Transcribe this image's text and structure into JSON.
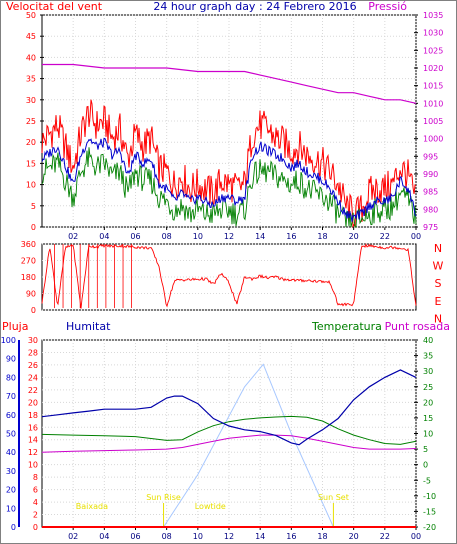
{
  "colors": {
    "wind": "#ff0000",
    "wind_avg": "#0000cc",
    "wind_min": "#008000",
    "pressure": "#cc00cc",
    "direction": "#ff0000",
    "humidity": "#0000aa",
    "temperature": "#008000",
    "dewpoint": "#cc00cc",
    "rain": "#ff0000",
    "sun": "#a8c8ff",
    "marker": "#e8e000",
    "left_axis": "#ff0000",
    "right_axis": "#cc00cc",
    "humidity_axis": "#0000cc",
    "temp_axis": "#008000"
  },
  "chart_data": [
    {
      "type": "line",
      "title": "24 hour graph day : 24 Febrero 2016",
      "left_label": "Velocitat del vent",
      "right_label": "Pressió",
      "x_ticks": [
        "02",
        "04",
        "06",
        "08",
        "10",
        "12",
        "14",
        "16",
        "18",
        "20",
        "22",
        "00"
      ],
      "y_left": {
        "min": 0,
        "max": 50,
        "ticks": [
          0,
          5,
          10,
          15,
          20,
          25,
          30,
          35,
          40,
          45,
          50
        ]
      },
      "y_right": {
        "min": 975,
        "max": 1035,
        "ticks": [
          975,
          980,
          985,
          990,
          995,
          1000,
          1005,
          1010,
          1015,
          1020,
          1025,
          1030,
          1035
        ]
      },
      "series": [
        {
          "key": "gust",
          "hours": [
            0,
            1,
            2,
            2.5,
            3,
            3.5,
            4,
            4.5,
            5,
            5.5,
            6,
            6.5,
            7,
            7.5,
            8,
            8.5,
            9,
            9.5,
            10,
            10.5,
            11,
            11.5,
            12,
            12.5,
            13,
            13.5,
            14,
            14.5,
            15,
            15.5,
            16,
            16.5,
            17,
            17.5,
            18,
            18.5,
            19,
            19.5,
            20,
            20.5,
            21,
            21.5,
            22,
            22.5,
            23,
            23.5,
            24
          ],
          "values": [
            20,
            24,
            14,
            22,
            27,
            24,
            25,
            21,
            23,
            16,
            22,
            19,
            21,
            14,
            13,
            10,
            12,
            9,
            10,
            9,
            8,
            11,
            10,
            9,
            10,
            22,
            24,
            23,
            21,
            20,
            18,
            19,
            17,
            16,
            15,
            13,
            10,
            5,
            3,
            4,
            8,
            9,
            9,
            10,
            14,
            12,
            6
          ]
        },
        {
          "key": "wind_avg",
          "hours": [
            0,
            1,
            2,
            2.5,
            3,
            3.5,
            4,
            4.5,
            5,
            5.5,
            6,
            6.5,
            7,
            7.5,
            8,
            8.5,
            9,
            9.5,
            10,
            10.5,
            11,
            11.5,
            12,
            12.5,
            13,
            13.5,
            14,
            14.5,
            15,
            15.5,
            16,
            16.5,
            17,
            17.5,
            18,
            18.5,
            19,
            19.5,
            20,
            20.5,
            21,
            21.5,
            22,
            22.5,
            23,
            23.5,
            24
          ],
          "values": [
            16,
            19,
            10,
            17,
            21,
            19,
            20,
            17,
            18,
            12,
            17,
            15,
            16,
            10,
            9,
            6,
            8,
            6,
            7,
            6,
            5,
            7,
            7,
            6,
            7,
            17,
            19,
            18,
            17,
            16,
            14,
            15,
            13,
            12,
            11,
            9,
            6,
            3,
            2,
            3,
            5,
            6,
            6,
            7,
            11,
            9,
            3
          ]
        },
        {
          "key": "wind_min",
          "hours": [
            0,
            1,
            2,
            2.5,
            3,
            3.5,
            4,
            4.5,
            5,
            5.5,
            6,
            6.5,
            7,
            7.5,
            8,
            8.5,
            9,
            9.5,
            10,
            10.5,
            11,
            11.5,
            12,
            12.5,
            13,
            13.5,
            14,
            14.5,
            15,
            15.5,
            16,
            16.5,
            17,
            17.5,
            18,
            18.5,
            19,
            19.5,
            20,
            20.5,
            21,
            21.5,
            22,
            22.5,
            23,
            23.5,
            24
          ],
          "values": [
            13,
            15,
            7,
            13,
            16,
            14,
            15,
            12,
            13,
            8,
            13,
            11,
            11,
            7,
            6,
            4,
            5,
            3,
            4,
            3,
            3,
            4,
            4,
            3,
            4,
            12,
            13,
            13,
            12,
            11,
            10,
            11,
            9,
            8,
            7,
            6,
            3,
            1,
            1,
            2,
            3,
            4,
            4,
            5,
            8,
            6,
            2
          ]
        },
        {
          "key": "pressure",
          "axis": "right",
          "hours": [
            0,
            2,
            4,
            6,
            8,
            10,
            12,
            13,
            14,
            16,
            17,
            18,
            19,
            20,
            21,
            22,
            23,
            24
          ],
          "values": [
            1021,
            1021,
            1020,
            1020,
            1020,
            1019,
            1019,
            1019,
            1018,
            1016,
            1015,
            1014,
            1013,
            1013,
            1012,
            1011,
            1011,
            1010
          ]
        }
      ]
    },
    {
      "type": "line",
      "ylabels": [
        "N",
        "W",
        "S",
        "E",
        "N"
      ],
      "y": {
        "min": 0,
        "max": 360,
        "ticks": [
          0,
          90,
          180,
          270,
          360
        ]
      },
      "series": [
        {
          "key": "direction",
          "hours": [
            0,
            0.5,
            1,
            1.5,
            2,
            2.5,
            3,
            3.5,
            4,
            4.5,
            5,
            5.5,
            6,
            6.5,
            7,
            7.5,
            8,
            8.5,
            9,
            9.5,
            10,
            10.5,
            11,
            11.5,
            12,
            12.5,
            13,
            13.5,
            14,
            14.5,
            15,
            15.5,
            16,
            16.5,
            17,
            17.5,
            18,
            18.5,
            19,
            19.5,
            20,
            20.5,
            21,
            21.5,
            22,
            22.5,
            23,
            23.5,
            24
          ],
          "values": [
            40,
            350,
            20,
            340,
            355,
            10,
            350,
            345,
            352,
            348,
            350,
            346,
            344,
            340,
            338,
            240,
            20,
            160,
            165,
            165,
            168,
            170,
            140,
            200,
            150,
            30,
            180,
            170,
            185,
            175,
            180,
            168,
            165,
            160,
            162,
            158,
            155,
            150,
            30,
            30,
            30,
            350,
            350,
            345,
            340,
            342,
            338,
            330,
            20
          ]
        }
      ]
    },
    {
      "type": "line",
      "labels": {
        "rain": "Pluja",
        "humidity": "Humitat",
        "temperature": "Temperatura",
        "dewpoint": "Punt rosada"
      },
      "x_ticks": [
        "02",
        "04",
        "06",
        "08",
        "10",
        "12",
        "14",
        "16",
        "18",
        "20",
        "22",
        "00"
      ],
      "y_humidity": {
        "min": 0,
        "max": 100,
        "ticks": [
          0,
          10,
          20,
          30,
          40,
          50,
          60,
          70,
          80,
          90,
          100
        ]
      },
      "y_rain": {
        "min": 0,
        "max": 30,
        "ticks": [
          0,
          2,
          4,
          6,
          8,
          10,
          12,
          14,
          16,
          18,
          20,
          22,
          24,
          26,
          28,
          30
        ]
      },
      "y_temp": {
        "min": -20,
        "max": 40,
        "ticks": [
          -20,
          -15,
          -10,
          -5,
          0,
          5,
          10,
          15,
          20,
          25,
          30,
          35,
          40
        ]
      },
      "events": [
        {
          "label": "Sun Rise",
          "hour": 7.8
        },
        {
          "label": "Sun Set",
          "hour": 18.7
        },
        {
          "label": "Baixada",
          "hour": 3.2
        },
        {
          "label": "Lowtide",
          "hour": 10.8
        }
      ],
      "series": [
        {
          "key": "humidity",
          "axis": "humidity",
          "hours": [
            0,
            1,
            2,
            3,
            4,
            5,
            6,
            7,
            8,
            8.5,
            9,
            10,
            11,
            12,
            13,
            14,
            15,
            16,
            16.5,
            17,
            18,
            19,
            20,
            21,
            22,
            23,
            23.5,
            24
          ],
          "values": [
            59,
            60,
            61,
            62,
            63,
            63,
            63,
            64,
            69,
            70,
            70,
            66,
            58,
            54,
            52,
            51,
            49,
            45,
            44,
            47,
            52,
            58,
            68,
            75,
            80,
            84,
            82,
            80
          ]
        },
        {
          "key": "temperature",
          "axis": "temp",
          "hours": [
            0,
            2,
            4,
            6,
            8,
            9,
            10,
            11,
            12,
            13,
            14,
            15,
            16,
            17,
            18,
            19,
            20,
            21,
            22,
            23,
            24
          ],
          "values": [
            9.7,
            9.5,
            9.3,
            9,
            7.8,
            8,
            10.5,
            12.5,
            13.8,
            14.6,
            15,
            15.3,
            15.5,
            15.2,
            14,
            11.5,
            9.5,
            8,
            6.8,
            6.5,
            7.5
          ]
        },
        {
          "key": "dewpoint",
          "axis": "temp",
          "hours": [
            0,
            2,
            4,
            6,
            8,
            9,
            10,
            11,
            12,
            13,
            14,
            15,
            16,
            17,
            18,
            19,
            20,
            21,
            22,
            23,
            24
          ],
          "values": [
            4,
            4.3,
            4.5,
            4.7,
            5,
            5.5,
            6.5,
            7.5,
            8.5,
            9,
            9.5,
            9.5,
            9.3,
            8.5,
            7.5,
            6.5,
            5.5,
            5,
            5,
            5,
            5.2
          ]
        },
        {
          "key": "solar",
          "axis": "humidity",
          "hours": [
            7.8,
            10,
            13,
            14.2,
            16,
            18.7
          ],
          "values": [
            0,
            28,
            75,
            87,
            50,
            0
          ]
        },
        {
          "key": "rain",
          "axis": "rain",
          "hours": [
            0,
            24
          ],
          "values": [
            0,
            0
          ]
        }
      ]
    }
  ]
}
